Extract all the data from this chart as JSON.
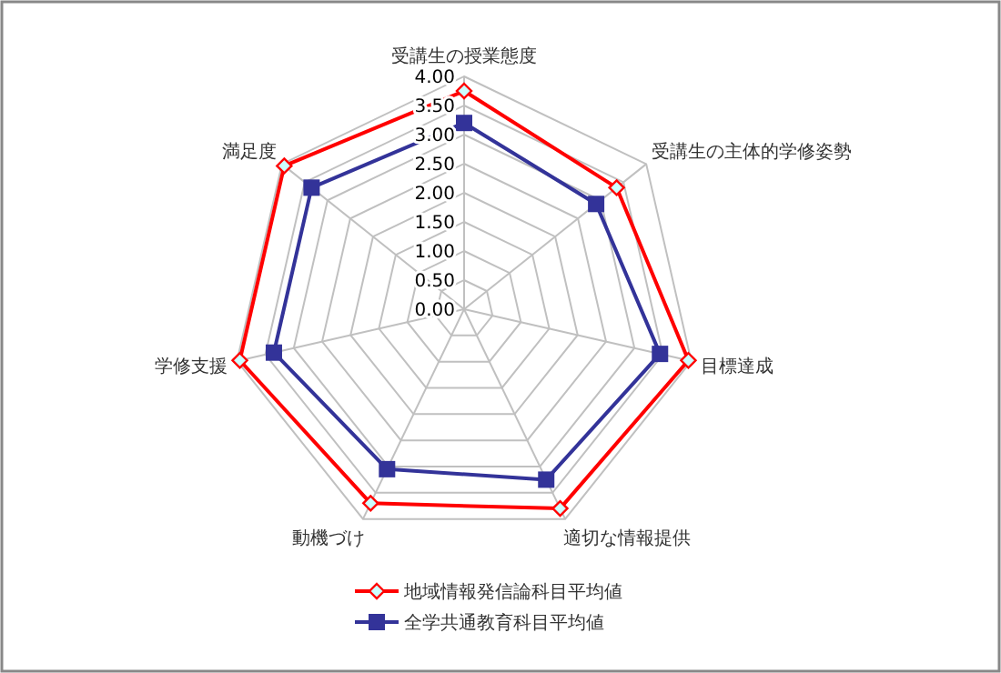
{
  "chart_data": {
    "type": "radar",
    "categories": [
      "受講生の授業態度",
      "受講生の主体的学修姿勢",
      "目標達成",
      "適切な情報提供",
      "動機づけ",
      "学修支援",
      "満足度"
    ],
    "series": [
      {
        "name": "地域情報発信論科目平均値",
        "color": "#ff0000",
        "marker": "diamond",
        "values": [
          3.75,
          3.35,
          3.95,
          3.8,
          3.7,
          3.95,
          3.95
        ]
      },
      {
        "name": "全学共通教育科目平均値",
        "color": "#333399",
        "marker": "square",
        "values": [
          3.2,
          2.9,
          3.45,
          3.25,
          3.05,
          3.35,
          3.35
        ]
      }
    ],
    "ylim": [
      0,
      4
    ],
    "yticks": [
      {
        "value": 0,
        "label": "0.00"
      },
      {
        "value": 0.5,
        "label": "0.50"
      },
      {
        "value": 1,
        "label": "1.00"
      },
      {
        "value": 1.5,
        "label": "1.50"
      },
      {
        "value": 2,
        "label": "2.00"
      },
      {
        "value": 2.5,
        "label": "2.50"
      },
      {
        "value": 3,
        "label": "3.00"
      },
      {
        "value": 3.5,
        "label": "3.50"
      },
      {
        "value": 4,
        "label": "4.00"
      }
    ],
    "grid": true,
    "legend": "bottom"
  }
}
